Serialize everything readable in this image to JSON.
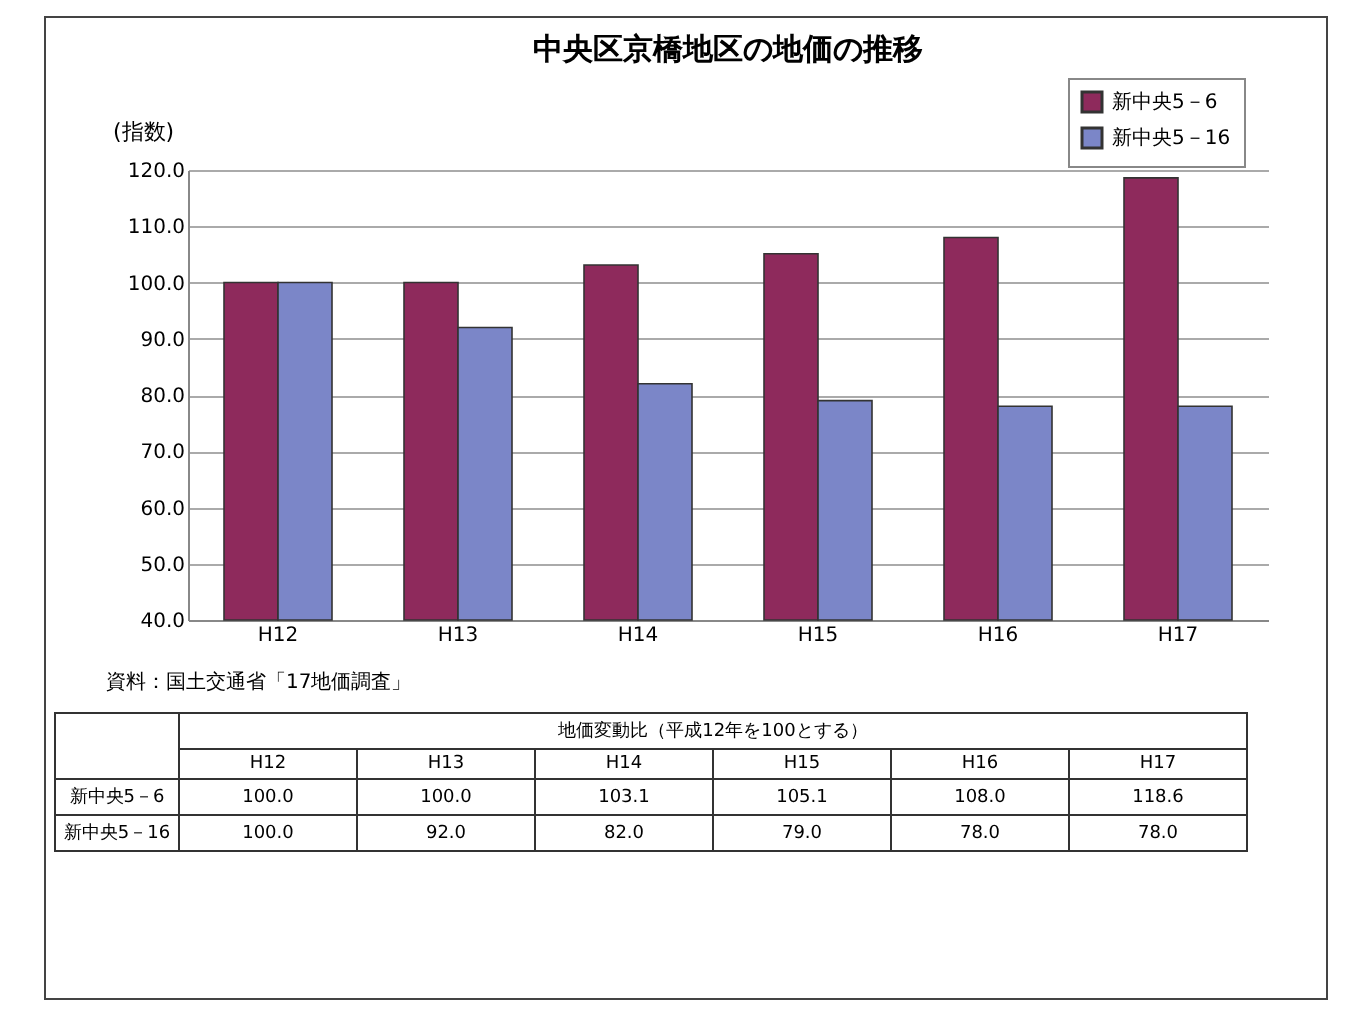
{
  "chart_data": {
    "type": "bar",
    "title": "中央区京橋地区の地価の推移",
    "ylabel": "(指数)",
    "categories": [
      "H12",
      "H13",
      "H14",
      "H15",
      "H16",
      "H17"
    ],
    "series": [
      {
        "name": "新中央5－6",
        "color": "#8e2a5c",
        "values": [
          100.0,
          100.0,
          103.1,
          105.1,
          108.0,
          118.6
        ],
        "value_labels": [
          "100.0",
          "100.0",
          "103.1",
          "105.1",
          "108.0",
          "118.6"
        ]
      },
      {
        "name": "新中央5－16",
        "color": "#7b86c8",
        "values": [
          100.0,
          92.0,
          82.0,
          79.0,
          78.0,
          78.0
        ],
        "value_labels": [
          "100.0",
          "92.0",
          "82.0",
          "79.0",
          "78.0",
          "78.0"
        ]
      }
    ],
    "ylim": [
      40,
      120
    ],
    "yticks": [
      {
        "value": 40,
        "label": "40.0"
      },
      {
        "value": 50,
        "label": "50.0"
      },
      {
        "value": 60,
        "label": "60.0"
      },
      {
        "value": 70,
        "label": "70.0"
      },
      {
        "value": 80,
        "label": "80.0"
      },
      {
        "value": 90,
        "label": "90.0"
      },
      {
        "value": 100,
        "label": "100.0"
      },
      {
        "value": 110,
        "label": "110.0"
      },
      {
        "value": 120,
        "label": "120.0"
      }
    ],
    "grid": "y",
    "legend": "top right",
    "annotations": [
      "資料：国土交通省「17地価調査」",
      "地価変動比（平成12年を100とする）"
    ]
  }
}
